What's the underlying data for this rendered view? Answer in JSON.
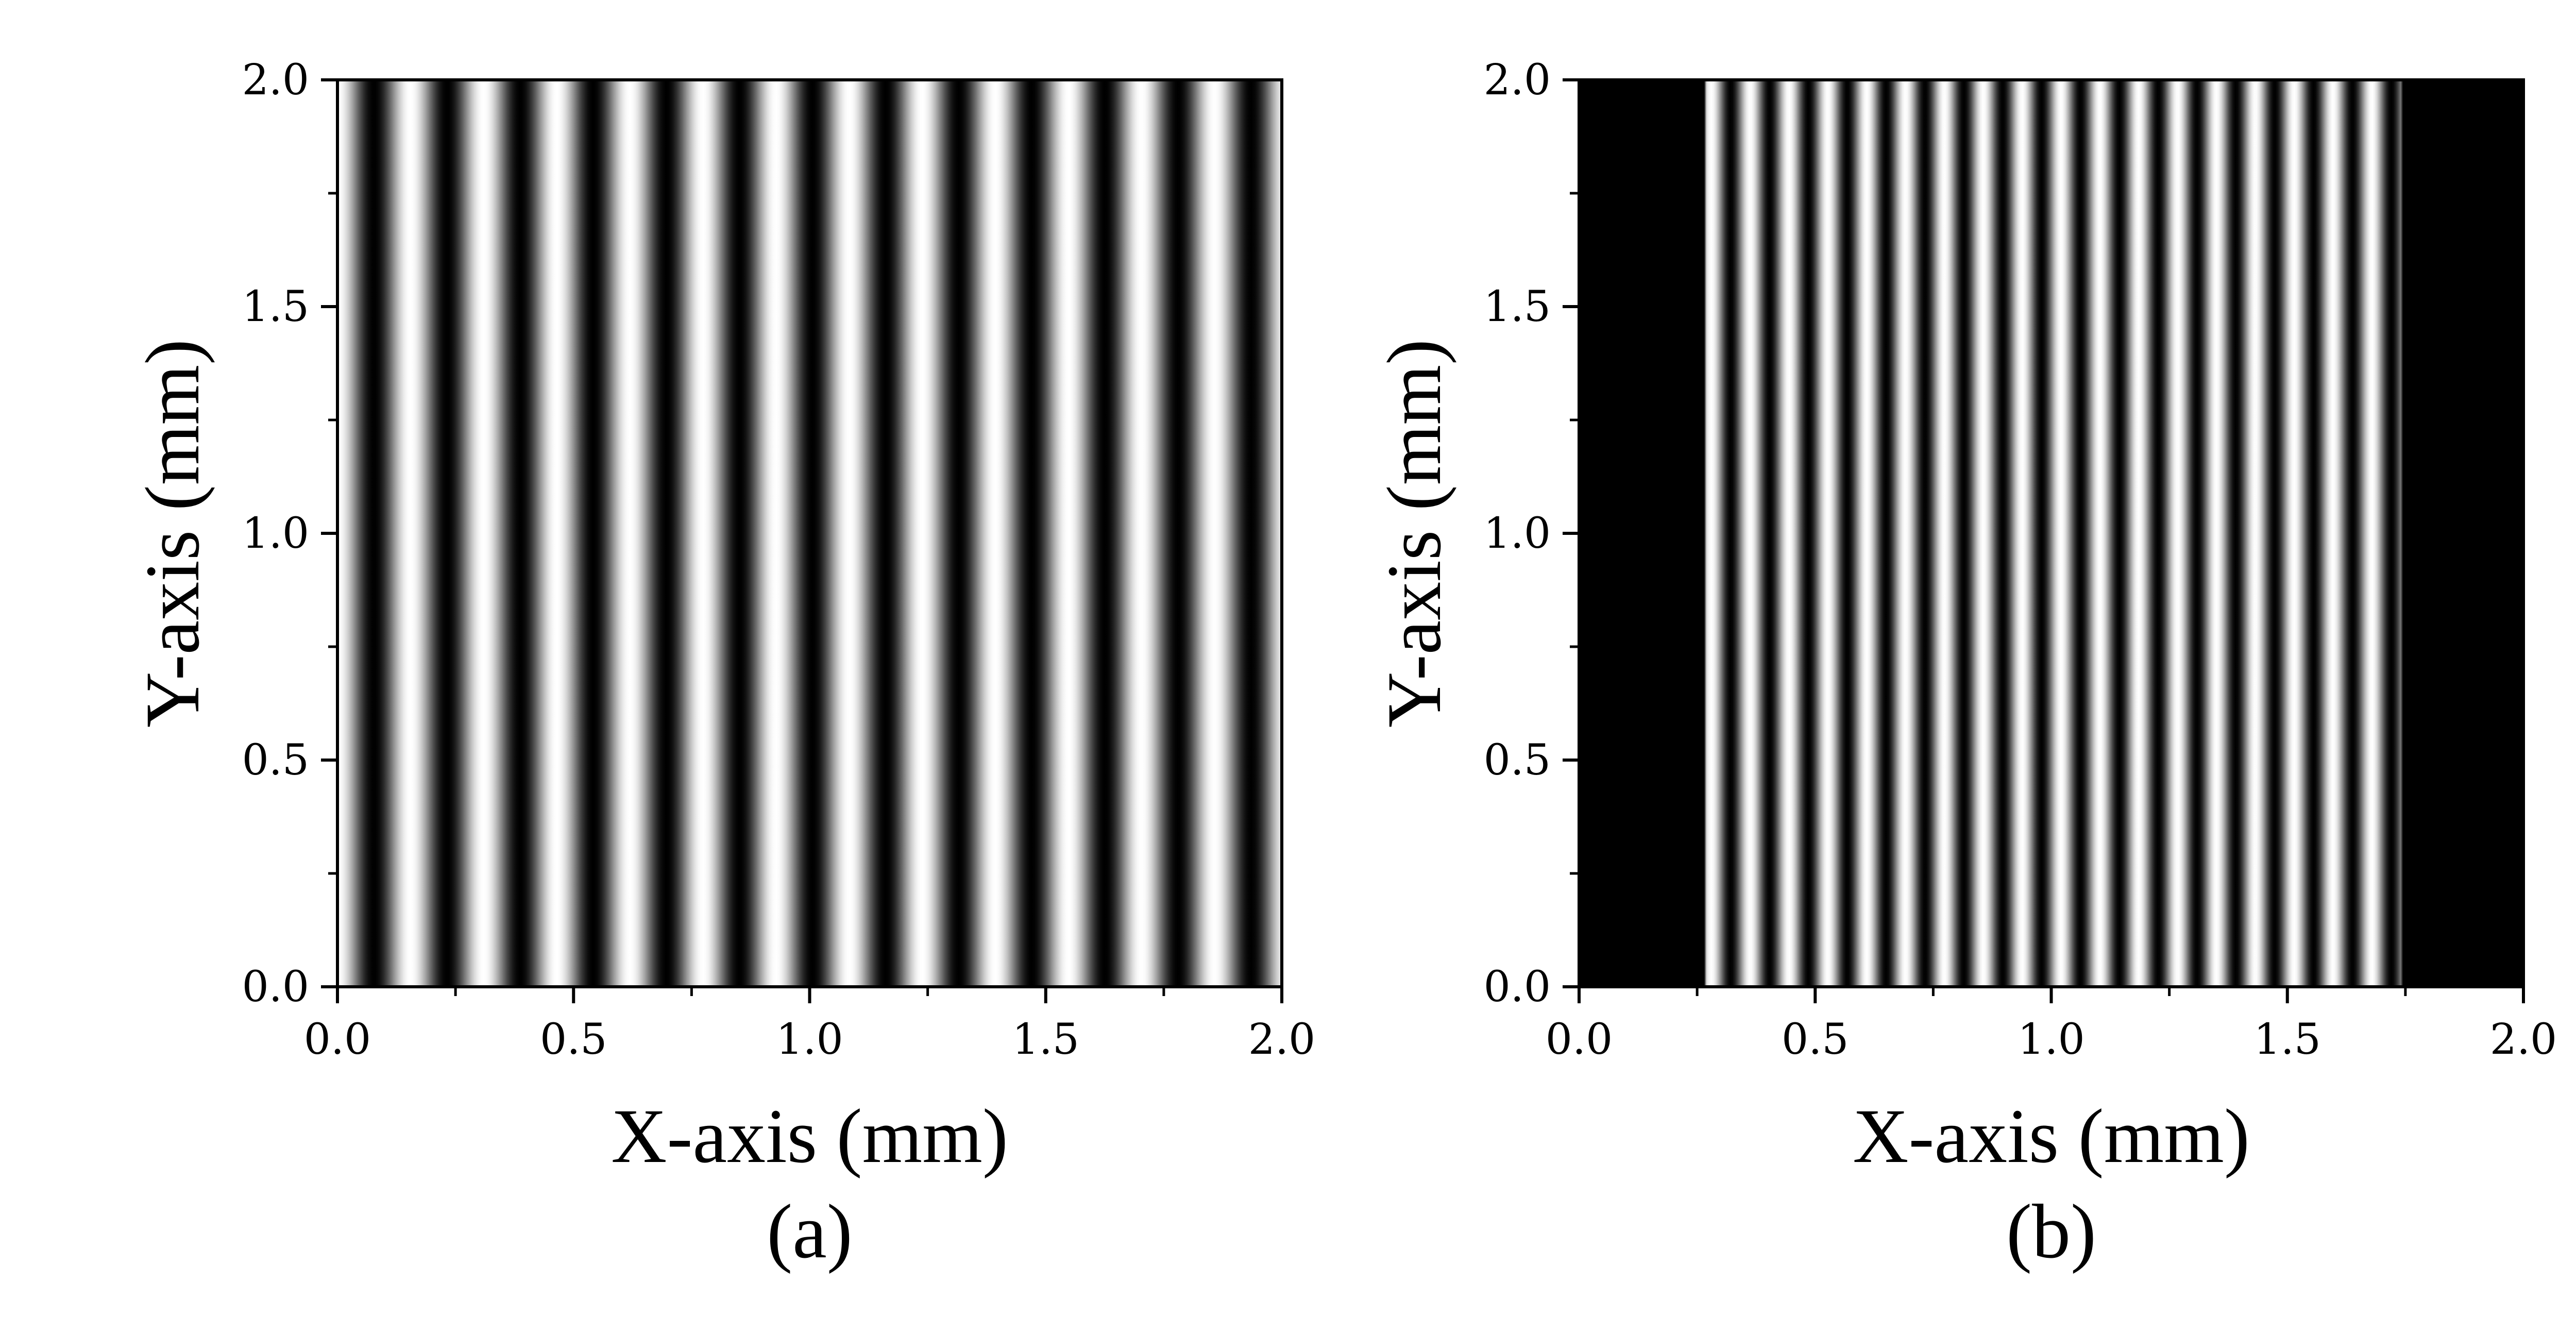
{
  "chart_data": [
    {
      "type": "heatmap",
      "panel_label": "(a)",
      "xlabel": "X-axis (mm)",
      "ylabel": "Y-axis (mm)",
      "xlim": [
        0.0,
        2.0
      ],
      "ylim": [
        0.0,
        2.0
      ],
      "xticks": [
        "0.0",
        "0.5",
        "1.0",
        "1.5",
        "2.0"
      ],
      "yticks": [
        "0.0",
        "0.5",
        "1.0",
        "1.5",
        "2.0"
      ],
      "xtick_values": [
        0.0,
        0.5,
        1.0,
        1.5,
        2.0
      ],
      "ytick_values": [
        0.0,
        0.5,
        1.0,
        1.5,
        2.0
      ],
      "fringe_pattern": "vertical sinusoidal fringes",
      "fringe_period_mm": 0.1548,
      "fringe_phase_mm": 0.0,
      "aperture_x_mm": [
        0.0,
        2.0
      ],
      "colormap": "gray"
    },
    {
      "type": "heatmap",
      "panel_label": "(b)",
      "xlabel": "X-axis (mm)",
      "ylabel": "Y-axis (mm)",
      "xlim": [
        0.0,
        2.0
      ],
      "ylim": [
        0.0,
        2.0
      ],
      "xticks": [
        "0.0",
        "0.5",
        "1.0",
        "1.5",
        "2.0"
      ],
      "yticks": [
        "0.0",
        "0.5",
        "1.0",
        "1.5",
        "2.0"
      ],
      "xtick_values": [
        0.0,
        0.5,
        1.0,
        1.5,
        2.0
      ],
      "ytick_values": [
        0.0,
        0.5,
        1.0,
        1.5,
        2.0
      ],
      "fringe_pattern": "vertical sinusoidal fringes inside aperture, black outside",
      "fringe_period_mm": 0.0823,
      "fringe_phase_mm": 0.28,
      "aperture_x_mm": [
        0.27,
        1.74
      ],
      "colormap": "gray"
    }
  ]
}
